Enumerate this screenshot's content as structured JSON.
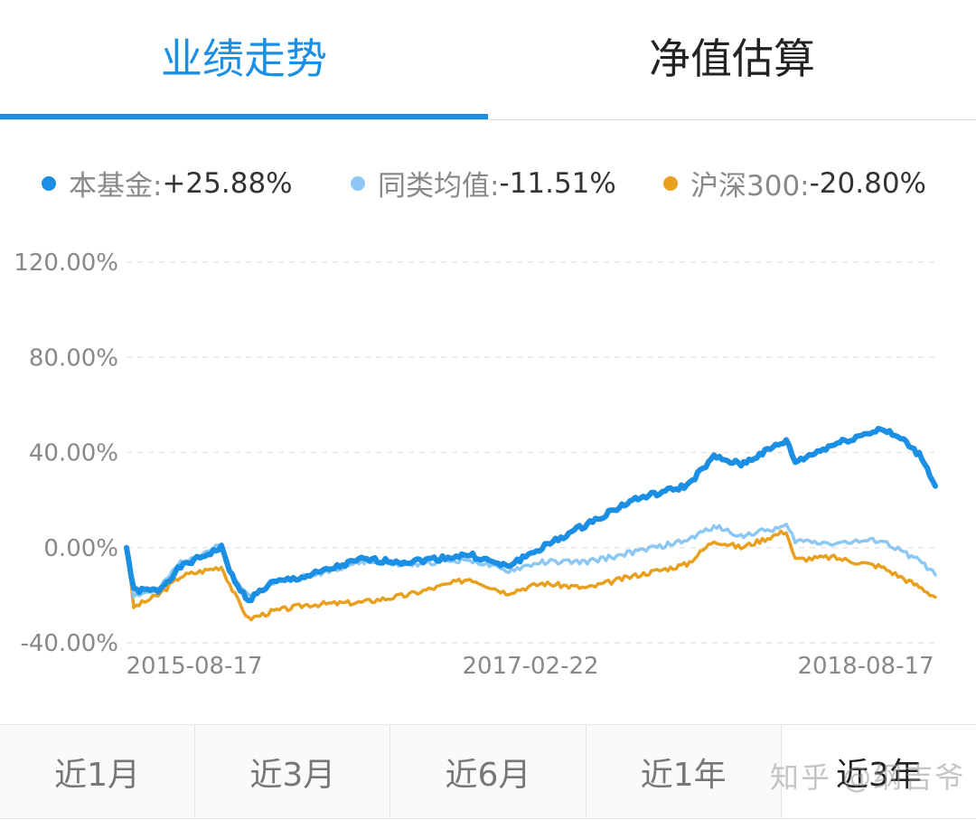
{
  "tabs": [
    {
      "label": "业绩走势",
      "active": true
    },
    {
      "label": "净值估算",
      "active": false
    }
  ],
  "legend": [
    {
      "name": "本基金:",
      "value": "+25.88%",
      "color": "#1a8fe3"
    },
    {
      "name": "同类均值:",
      "value": "-11.51%",
      "color": "#8cc8f3"
    },
    {
      "name": "沪深300:",
      "value": "-20.80%",
      "color": "#e8a01e"
    }
  ],
  "periods": [
    {
      "label": "近1月",
      "active": false
    },
    {
      "label": "近3月",
      "active": false
    },
    {
      "label": "近6月",
      "active": false
    },
    {
      "label": "近1年",
      "active": false
    },
    {
      "label": "近3年",
      "active": true
    }
  ],
  "watermark": "知乎 @纲吉爷",
  "chart_data": {
    "type": "line",
    "title": "",
    "xlabel": "",
    "ylabel": "",
    "x_tick_labels": [
      "2015-08-17",
      "2017-02-22",
      "2018-08-17"
    ],
    "y_tick_labels": [
      "120.00%",
      "80.00%",
      "40.00%",
      "0.00%",
      "-40.00%"
    ],
    "ylim": [
      -40,
      120
    ],
    "grid": "horizontal dashed",
    "legend_position": "top",
    "x": [
      0,
      8,
      35,
      60,
      105,
      120,
      135,
      160,
      200,
      260,
      310,
      380,
      420,
      460,
      510,
      560,
      620,
      650,
      680,
      730,
      740,
      780,
      835,
      860,
      880,
      895
    ],
    "series": [
      {
        "name": "本基金",
        "final": 25.88,
        "color": "#1a8fe3",
        "values": [
          0,
          -18,
          -18,
          -8,
          0,
          -15,
          -22,
          -15,
          -12,
          -5,
          -6,
          -3,
          -8,
          0,
          10,
          20,
          26,
          38,
          35,
          45,
          36,
          43,
          50,
          45,
          38,
          25.88
        ]
      },
      {
        "name": "同类均值",
        "final": -11.51,
        "color": "#8cc8f3",
        "values": [
          0,
          -20,
          -18,
          -6,
          1,
          -14,
          -20,
          -15,
          -12,
          -6,
          -7,
          -5,
          -10,
          -6,
          -6,
          -2,
          3,
          9,
          5,
          9,
          3,
          2,
          3,
          -2,
          -6,
          -11.51
        ]
      },
      {
        "name": "沪深300",
        "final": -20.8,
        "color": "#e8a01e",
        "values": [
          0,
          -25,
          -20,
          -12,
          -8,
          -20,
          -30,
          -27,
          -24,
          -23,
          -20,
          -13,
          -19,
          -15,
          -17,
          -12,
          -7,
          3,
          0,
          7,
          -5,
          -4,
          -8,
          -13,
          -17,
          -20.8
        ]
      }
    ]
  }
}
